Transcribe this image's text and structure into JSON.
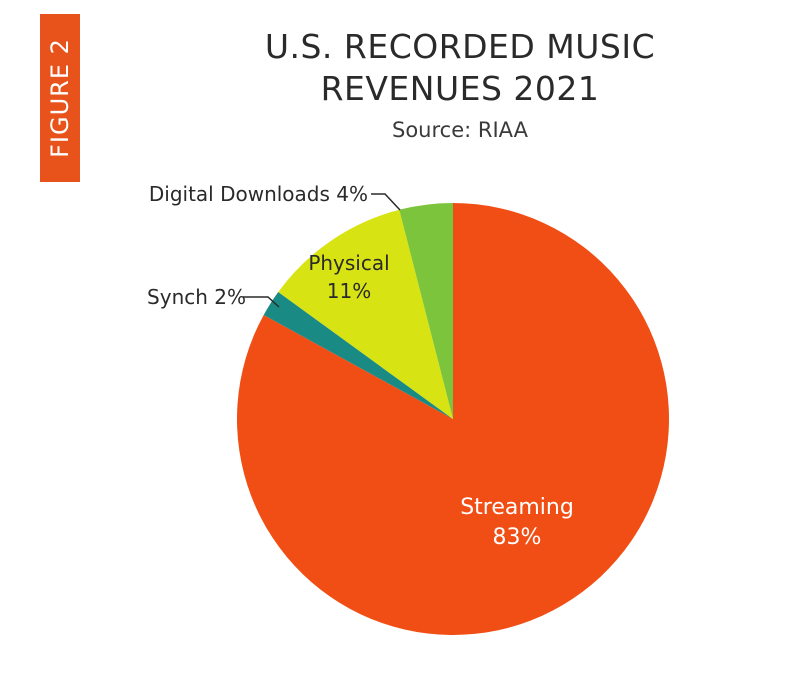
{
  "figure_tab": "FIGURE 2",
  "chart_data": {
    "type": "pie",
    "title_lines": [
      "U.S. RECORDED MUSIC",
      "REVENUES 2021"
    ],
    "subtitle": "Source: RIAA",
    "slices": [
      {
        "name": "Streaming",
        "value": 83,
        "label": "83%",
        "color": "#f04e14",
        "label_inside": true
      },
      {
        "name": "Synch",
        "value": 2,
        "label": "2%",
        "color": "#1a8a84",
        "label_inside": false
      },
      {
        "name": "Physical",
        "value": 11,
        "label": "11%",
        "color": "#d8e313",
        "label_inside": true
      },
      {
        "name": "Digital Downloads",
        "value": 4,
        "label": "4%",
        "color": "#7cc43c",
        "label_inside": false
      }
    ]
  }
}
